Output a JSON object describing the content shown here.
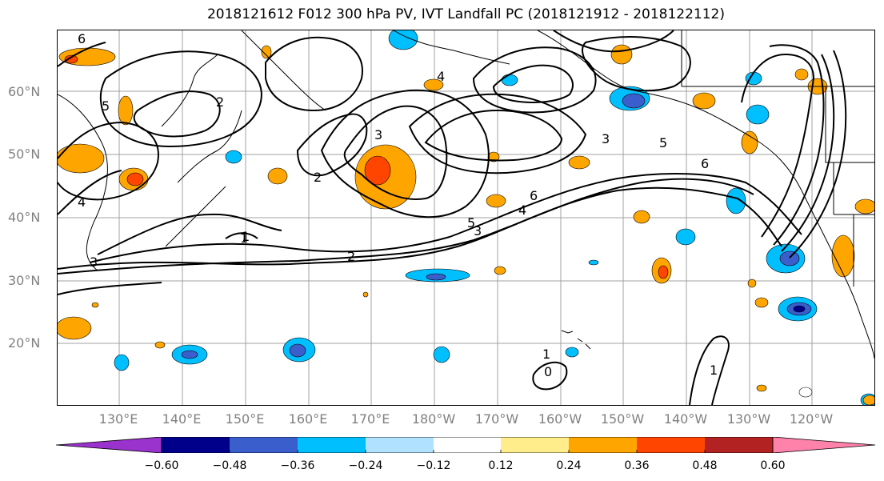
{
  "title": "2018121612 F012 300 hPa PV, IVT Landfall PC (2018121912 - 2018122112)",
  "lat_labels": [
    "60°N",
    "50°N",
    "40°N",
    "30°N",
    "20°N"
  ],
  "lon_labels": [
    "130°E",
    "140°E",
    "150°E",
    "160°E",
    "170°E",
    "180°W",
    "170°W",
    "160°W",
    "150°W",
    "140°W",
    "130°W",
    "120°W"
  ],
  "contour_labels": [
    "6",
    "5",
    "4",
    "3",
    "2",
    "1",
    "2",
    "3",
    "5",
    "6",
    "4",
    "5",
    "6",
    "3",
    "2",
    "1",
    "0",
    "1",
    "1",
    "3",
    "4"
  ],
  "colorbar": {
    "ticks": [
      "−0.60",
      "−0.48",
      "−0.36",
      "−0.24",
      "−0.12",
      "0.12",
      "0.24",
      "0.36",
      "0.48",
      "0.60"
    ],
    "colors": [
      "#9a32cd",
      "#00008b",
      "#3a5fcd",
      "#00bfff",
      "#b0e2ff",
      "#ffffff",
      "#ffec8b",
      "#ffa500",
      "#ff4500",
      "#b22222",
      "#ff82ab"
    ]
  },
  "colors": {
    "coast": "#000000",
    "grid": "#a0a0a0",
    "contour": "#000000"
  }
}
